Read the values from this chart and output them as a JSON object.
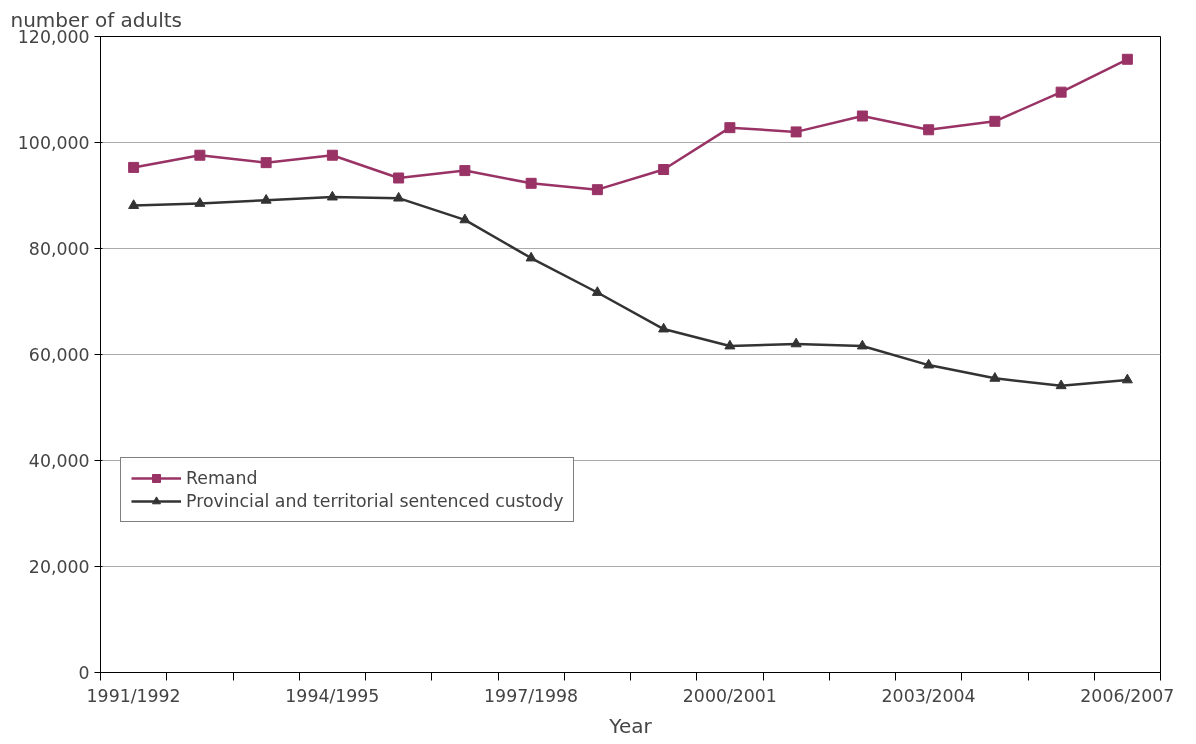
{
  "chart_data": {
    "type": "line",
    "ylabel": "number of adults",
    "xlabel": "Year",
    "categories": [
      "1991/1992",
      null,
      null,
      "1994/1995",
      null,
      null,
      "1997/1998",
      null,
      null,
      "2000/2001",
      null,
      null,
      "2003/2004",
      null,
      null,
      "2006/2007"
    ],
    "series": [
      {
        "name": "Remand",
        "color": "#993366",
        "marker": "square",
        "values": [
          95300,
          97600,
          96200,
          97600,
          93300,
          94700,
          92300,
          91100,
          94900,
          102800,
          102000,
          105000,
          102400,
          104000,
          109500,
          115700
        ]
      },
      {
        "name": "Provincial and territorial sentenced custody",
        "color": "#333333",
        "marker": "triangle",
        "values": [
          88100,
          88500,
          89100,
          89700,
          89500,
          85400,
          78200,
          71700,
          64800,
          61600,
          62000,
          61600,
          58000,
          55500,
          54100,
          55200
        ]
      }
    ],
    "ylim": [
      0,
      120000
    ],
    "yticks": [
      {
        "value": 0,
        "label": "0"
      },
      {
        "value": 20000,
        "label": "20,000"
      },
      {
        "value": 40000,
        "label": "40,000"
      },
      {
        "value": 60000,
        "label": "60,000"
      },
      {
        "value": 80000,
        "label": "80,000"
      },
      {
        "value": 100000,
        "label": "100,000"
      },
      {
        "value": 120000,
        "label": "120,000"
      }
    ],
    "grid": "y",
    "legend": "left",
    "line_style": "solid"
  }
}
